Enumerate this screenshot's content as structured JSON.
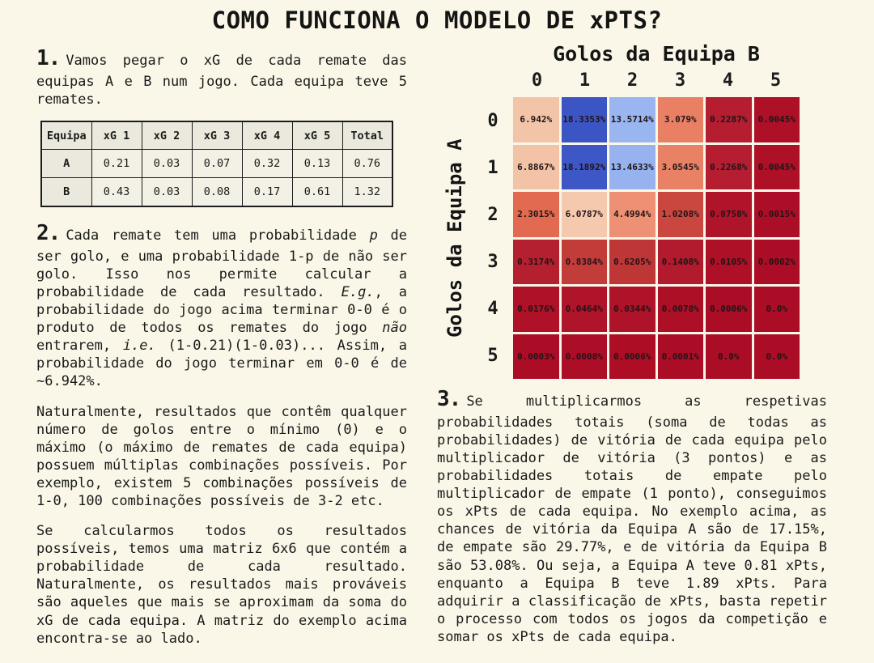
{
  "page": {
    "title": "COMO FUNCIONA O MODELO DE xPTS?",
    "background_color": "#fbf7e8",
    "text_color": "#1a1a1a"
  },
  "left": {
    "step1": {
      "number": "1.",
      "text": "Vamos pegar o xG de cada remate das equipas A e B num jogo. Cada equipa teve 5 remates."
    },
    "xg_table": {
      "headers": [
        "Equipa",
        "xG 1",
        "xG 2",
        "xG 3",
        "xG 4",
        "xG 5",
        "Total"
      ],
      "rows": [
        {
          "team": "A",
          "cells": [
            "0.21",
            "0.03",
            "0.07",
            "0.32",
            "0.13",
            "0.76"
          ]
        },
        {
          "team": "B",
          "cells": [
            "0.43",
            "0.03",
            "0.08",
            "0.17",
            "0.61",
            "1.32"
          ]
        }
      ]
    },
    "step2": {
      "number": "2.",
      "segments": [
        {
          "t": "Cada remate tem uma probabilidade "
        },
        {
          "t": "p",
          "i": true
        },
        {
          "t": " de ser golo, e uma probabilidade 1-p de não ser golo. Isso nos permite calcular a probabilidade de cada resultado. "
        },
        {
          "t": "E.g.",
          "i": true
        },
        {
          "t": ", a probabilidade do jogo acima terminar 0-0 é o produto de todos os remates do jogo "
        },
        {
          "t": "não",
          "i": true
        },
        {
          "t": " entrarem, "
        },
        {
          "t": "i.e.",
          "i": true
        },
        {
          "t": " (1-0.21)(1-0.03)... Assim, a probabilidade do jogo terminar em 0-0 é de ~6.942%."
        }
      ]
    },
    "para_combinations": "Naturalmente, resultados que contêm qualquer número de golos entre o mínimo (0) e o máximo (o máximo de remates de cada equipa) possuem múltiplas combinações possíveis. Por exemplo, existem 5 combinações possíveis de 1-0, 100 combinações possíveis de 3-2 etc.",
    "para_matrix": "Se calcularmos todos os resultados possíveis, temos uma matriz 6x6 que contém a probabilidade de cada resultado. Naturalmente, os resultados mais prováveis são aqueles que mais se aproximam da soma do xG de cada equipa. A matriz do exemplo acima encontra-se ao lado."
  },
  "right": {
    "step3": {
      "number": "3.",
      "text": "Se multiplicarmos as respetivas probabilidades totais (soma de todas as probabilidades) de vitória de cada equipa pelo multiplicador de vitória (3 pontos) e as probabilidades totais de empate pelo multiplicador de empate (1 ponto), conseguimos os xPts de cada equipa. No exemplo acima, as chances de vitória da Equipa A são de 17.15%, de empate são 29.77%, e de vitória da Equipa B são 53.08%. Ou seja, a Equipa A teve 0.81 xPts, enquanto a Equipa B teve 1.89 xPts. Para adquirir a classificação de xPts, basta repetir o processo com todos os jogos da competição e somar os xPts de cada equipa."
    }
  },
  "chart_data": {
    "type": "heatmap",
    "x_title": "Golos da Equipa B",
    "y_title": "Golos da Equipa A",
    "x_labels": [
      "0",
      "1",
      "2",
      "3",
      "4",
      "5"
    ],
    "y_labels": [
      "0",
      "1",
      "2",
      "3",
      "4",
      "5"
    ],
    "values_pct": [
      [
        6.942,
        18.3353,
        13.5714,
        3.079,
        0.2287,
        0.0045
      ],
      [
        6.8867,
        18.1892,
        13.4633,
        3.0545,
        0.2268,
        0.0045
      ],
      [
        2.3015,
        6.0787,
        4.4994,
        1.0208,
        0.0758,
        0.0015
      ],
      [
        0.3174,
        0.8384,
        0.6205,
        0.1408,
        0.0105,
        0.0002
      ],
      [
        0.0176,
        0.0464,
        0.0344,
        0.0078,
        0.0006,
        0.0
      ],
      [
        0.0003,
        0.0008,
        0.0006,
        0.0001,
        0.0,
        0.0
      ]
    ],
    "display": [
      [
        "6.942%",
        "18.3353%",
        "13.5714%",
        "3.079%",
        "0.2287%",
        "0.0045%"
      ],
      [
        "6.8867%",
        "18.1892%",
        "13.4633%",
        "3.0545%",
        "0.2268%",
        "0.0045%"
      ],
      [
        "2.3015%",
        "6.0787%",
        "4.4994%",
        "1.0208%",
        "0.0758%",
        "0.0015%"
      ],
      [
        "0.3174%",
        "0.8384%",
        "0.6205%",
        "0.1408%",
        "0.0105%",
        "0.0002%"
      ],
      [
        "0.0176%",
        "0.0464%",
        "0.0344%",
        "0.0078%",
        "0.0006%",
        "0.0%"
      ],
      [
        "0.0003%",
        "0.0008%",
        "0.0006%",
        "0.0001%",
        "0.0%",
        "0.0%"
      ]
    ],
    "colors": [
      [
        "#f2c5a8",
        "#3c55c4",
        "#99b6f1",
        "#e98064",
        "#b51d31",
        "#ae1028"
      ],
      [
        "#f2c3a6",
        "#3e57c6",
        "#96b3f0",
        "#e98164",
        "#b51d31",
        "#ae1028"
      ],
      [
        "#e26a50",
        "#f5c9ae",
        "#ee9073",
        "#c9473f",
        "#b0142a",
        "#ad0e27"
      ],
      [
        "#b52030",
        "#c23c3a",
        "#bf3637",
        "#b11b2d",
        "#ae1027",
        "#ac0d26"
      ],
      [
        "#ae1128",
        "#b0142a",
        "#af1329",
        "#ad0f27",
        "#ac0d26",
        "#ac0d26"
      ],
      [
        "#ac0d26",
        "#ad0e27",
        "#ad0e26",
        "#ac0d26",
        "#ac0d26",
        "#ac0d26"
      ]
    ],
    "colormap_note": "diverging red-blue: low probability = dark red, high probability = dark blue",
    "grid": "off",
    "legend": "none"
  }
}
